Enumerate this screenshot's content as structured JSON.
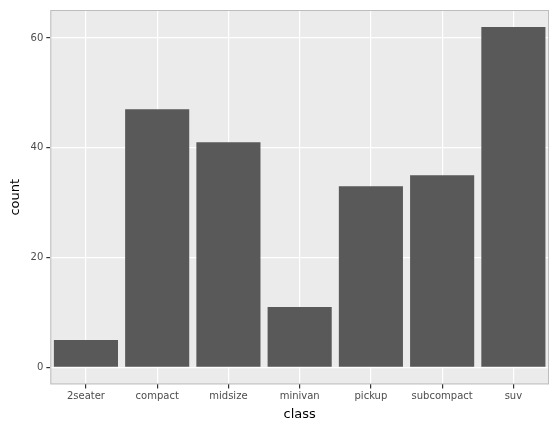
{
  "chart_data": {
    "type": "bar",
    "categories": [
      "2seater",
      "compact",
      "midsize",
      "minivan",
      "pickup",
      "subcompact",
      "suv"
    ],
    "values": [
      5,
      47,
      41,
      11,
      33,
      35,
      62
    ],
    "color": "#595959",
    "xlabel": "class",
    "ylabel": "count",
    "ylim": [
      -3.1,
      65.1
    ],
    "yticks": [
      0,
      20,
      40,
      60
    ],
    "grid": true
  }
}
